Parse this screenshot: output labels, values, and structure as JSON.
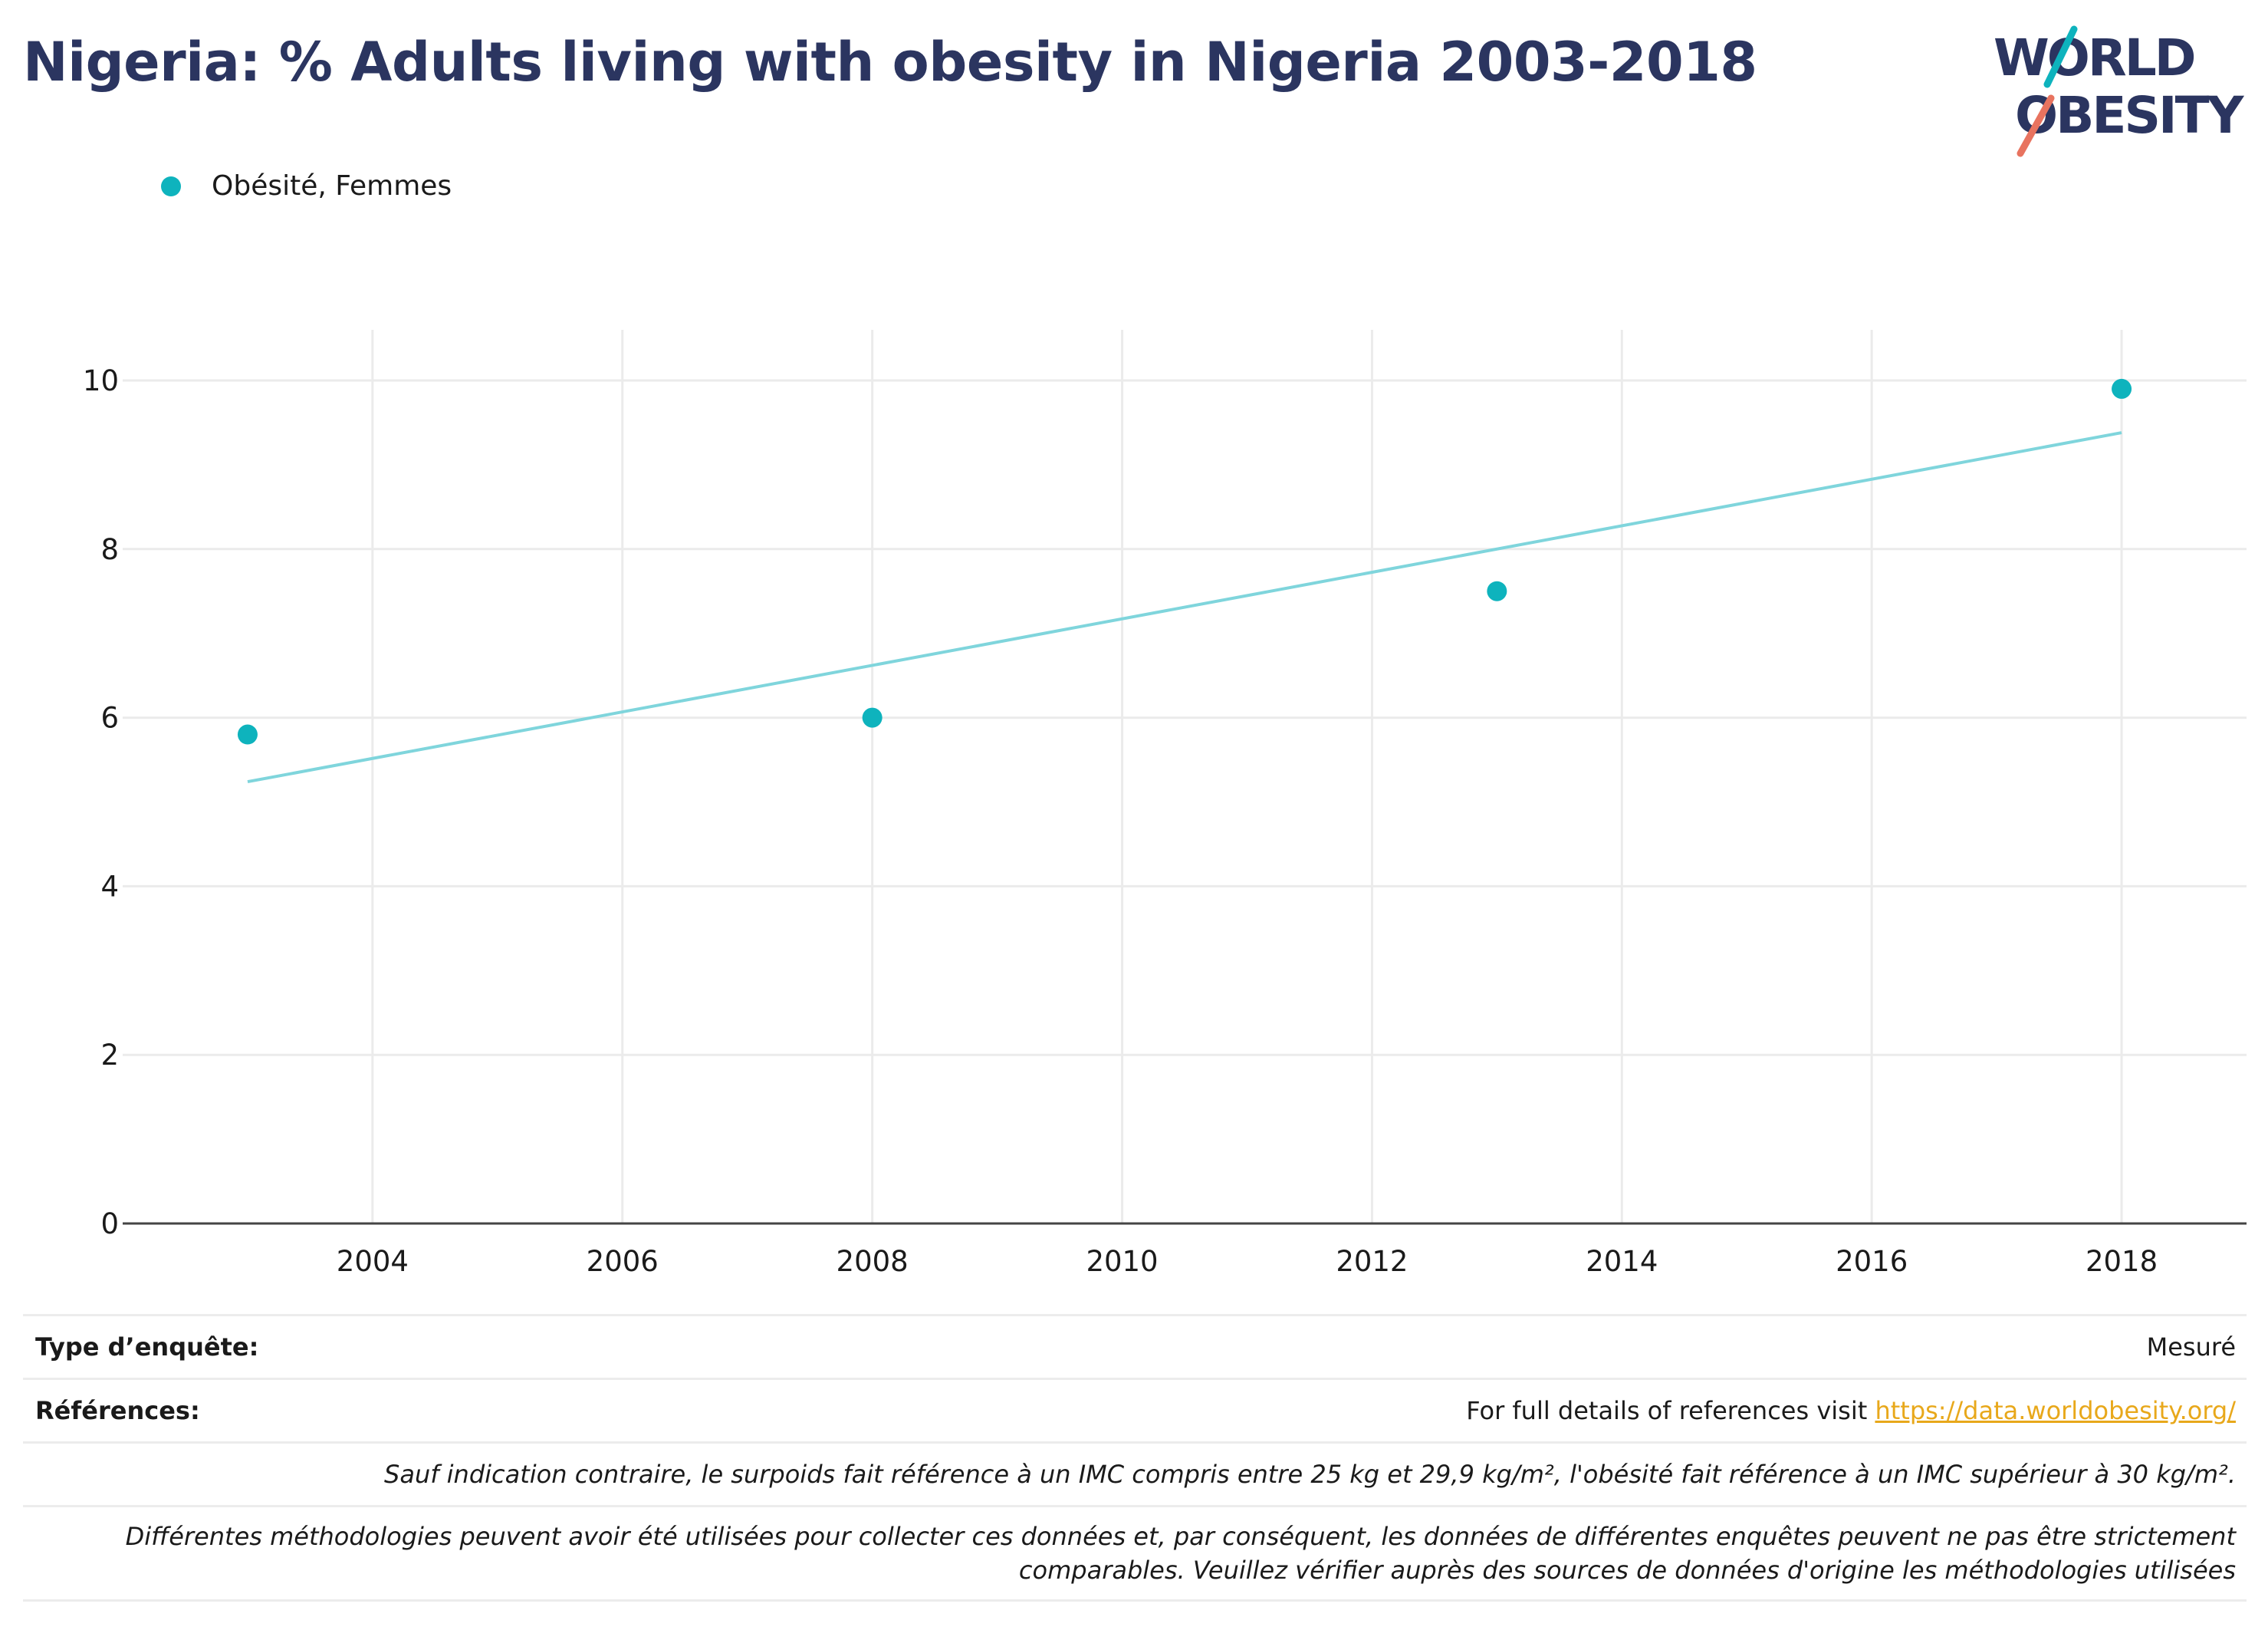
{
  "title": "Nigeria: % Adults living with obesity in Nigeria 2003-2018",
  "logo": {
    "line1": "WORLD",
    "line2": "OBESITY",
    "color_text": "#2b3560",
    "color_teal": "#0eb3bd",
    "color_coral": "#e8735f"
  },
  "colors": {
    "point": "#0eb3bd",
    "trend": "#7fd5dc",
    "grid": "#ebebeb",
    "axis": "#444444",
    "link": "#e8a81b"
  },
  "chart_data": {
    "type": "scatter",
    "series": [
      {
        "name": "Obésité, Femmes",
        "x": [
          2003,
          2008,
          2013,
          2018
        ],
        "y": [
          5.8,
          6.0,
          7.5,
          9.9
        ]
      }
    ],
    "trendline": {
      "x": [
        2003,
        2018
      ],
      "y": [
        5.24,
        9.38
      ]
    },
    "xlim": [
      2002,
      2019
    ],
    "ylim": [
      0,
      10.6
    ],
    "x_ticks": [
      "2004",
      "2006",
      "2008",
      "2010",
      "2012",
      "2014",
      "2016",
      "2018"
    ],
    "y_ticks": [
      "0",
      "2",
      "4",
      "6",
      "8",
      "10"
    ],
    "grid": true,
    "legend_position": "top-left"
  },
  "info": {
    "survey_type_label": "Type d’enquête:",
    "survey_type_value": "Mesuré",
    "references_label": "Références:",
    "references_text": "For full details of references visit ",
    "references_link": "https://data.worldobesity.org/",
    "note_bmi": "Sauf indication contraire, le surpoids fait référence à un IMC compris entre 25 kg et 29,9 kg/m², l'obésité fait référence à un IMC supérieur à 30 kg/m².",
    "note_method_1": "Différentes méthodologies peuvent avoir été utilisées pour collecter ces données et, par conséquent, les données de différentes enquêtes peuvent ne pas être strictement",
    "note_method_2": "comparables. Veuillez vérifier auprès des sources de données d'origine les méthodologies utilisées"
  }
}
